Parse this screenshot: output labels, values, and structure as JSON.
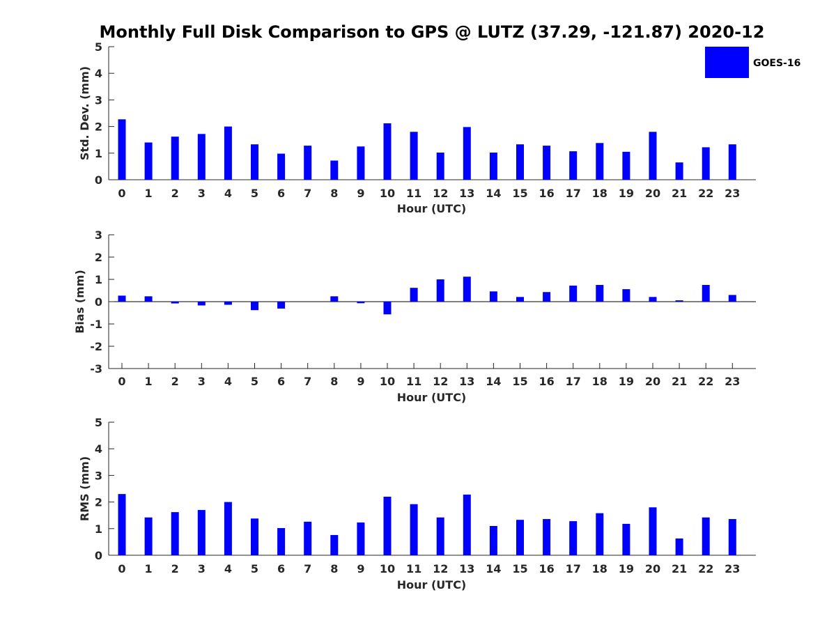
{
  "colors": {
    "bar": "#0000ff",
    "axis": "#262626",
    "background": "#ffffff"
  },
  "figure_title": "Monthly Full Disk Comparison to GPS @ LUTZ (37.29, -121.87) 2020-12",
  "legend": {
    "label": "GOES-16",
    "placement": "top-right"
  },
  "chart_data": [
    {
      "type": "bar",
      "title": "Monthly Full Disk Comparison to GPS @ LUTZ (37.29, -121.87) 2020-12",
      "xlabel": "Hour (UTC)",
      "ylabel": "Std. Dev. (mm)",
      "ylim": [
        0,
        5
      ],
      "yticks": [
        0,
        1,
        2,
        3,
        4,
        5
      ],
      "categories": [
        "0",
        "1",
        "2",
        "3",
        "4",
        "5",
        "6",
        "7",
        "8",
        "9",
        "10",
        "11",
        "12",
        "13",
        "14",
        "15",
        "16",
        "17",
        "18",
        "19",
        "20",
        "21",
        "22",
        "23"
      ],
      "series": [
        {
          "name": "GOES-16",
          "values": [
            2.27,
            1.4,
            1.62,
            1.72,
            2.0,
            1.33,
            0.98,
            1.28,
            0.72,
            1.25,
            2.12,
            1.8,
            1.02,
            1.98,
            1.02,
            1.33,
            1.28,
            1.07,
            1.38,
            1.05,
            1.8,
            0.65,
            1.22,
            1.33
          ]
        }
      ]
    },
    {
      "type": "bar",
      "title": "",
      "xlabel": "Hour (UTC)",
      "ylabel": "Bias (mm)",
      "ylim": [
        -3,
        3
      ],
      "yticks": [
        -3,
        -2,
        -1,
        0,
        1,
        2,
        3
      ],
      "categories": [
        "0",
        "1",
        "2",
        "3",
        "4",
        "5",
        "6",
        "7",
        "8",
        "9",
        "10",
        "11",
        "12",
        "13",
        "14",
        "15",
        "16",
        "17",
        "18",
        "19",
        "20",
        "21",
        "22",
        "23"
      ],
      "series": [
        {
          "name": "GOES-16",
          "values": [
            0.27,
            0.24,
            -0.08,
            -0.17,
            -0.14,
            -0.38,
            -0.31,
            0.0,
            0.24,
            -0.07,
            -0.57,
            0.62,
            1.0,
            1.12,
            0.46,
            0.21,
            0.43,
            0.72,
            0.75,
            0.56,
            0.21,
            0.06,
            0.75,
            0.3
          ]
        }
      ]
    },
    {
      "type": "bar",
      "title": "",
      "xlabel": "Hour (UTC)",
      "ylabel": "RMS (mm)",
      "ylim": [
        0,
        5
      ],
      "yticks": [
        0,
        1,
        2,
        3,
        4,
        5
      ],
      "categories": [
        "0",
        "1",
        "2",
        "3",
        "4",
        "5",
        "6",
        "7",
        "8",
        "9",
        "10",
        "11",
        "12",
        "13",
        "14",
        "15",
        "16",
        "17",
        "18",
        "19",
        "20",
        "21",
        "22",
        "23"
      ],
      "series": [
        {
          "name": "GOES-16",
          "values": [
            2.3,
            1.42,
            1.62,
            1.7,
            2.0,
            1.38,
            1.02,
            1.26,
            0.76,
            1.23,
            2.2,
            1.92,
            1.42,
            2.28,
            1.1,
            1.33,
            1.36,
            1.28,
            1.58,
            1.18,
            1.8,
            0.63,
            1.42,
            1.36
          ]
        }
      ]
    }
  ]
}
